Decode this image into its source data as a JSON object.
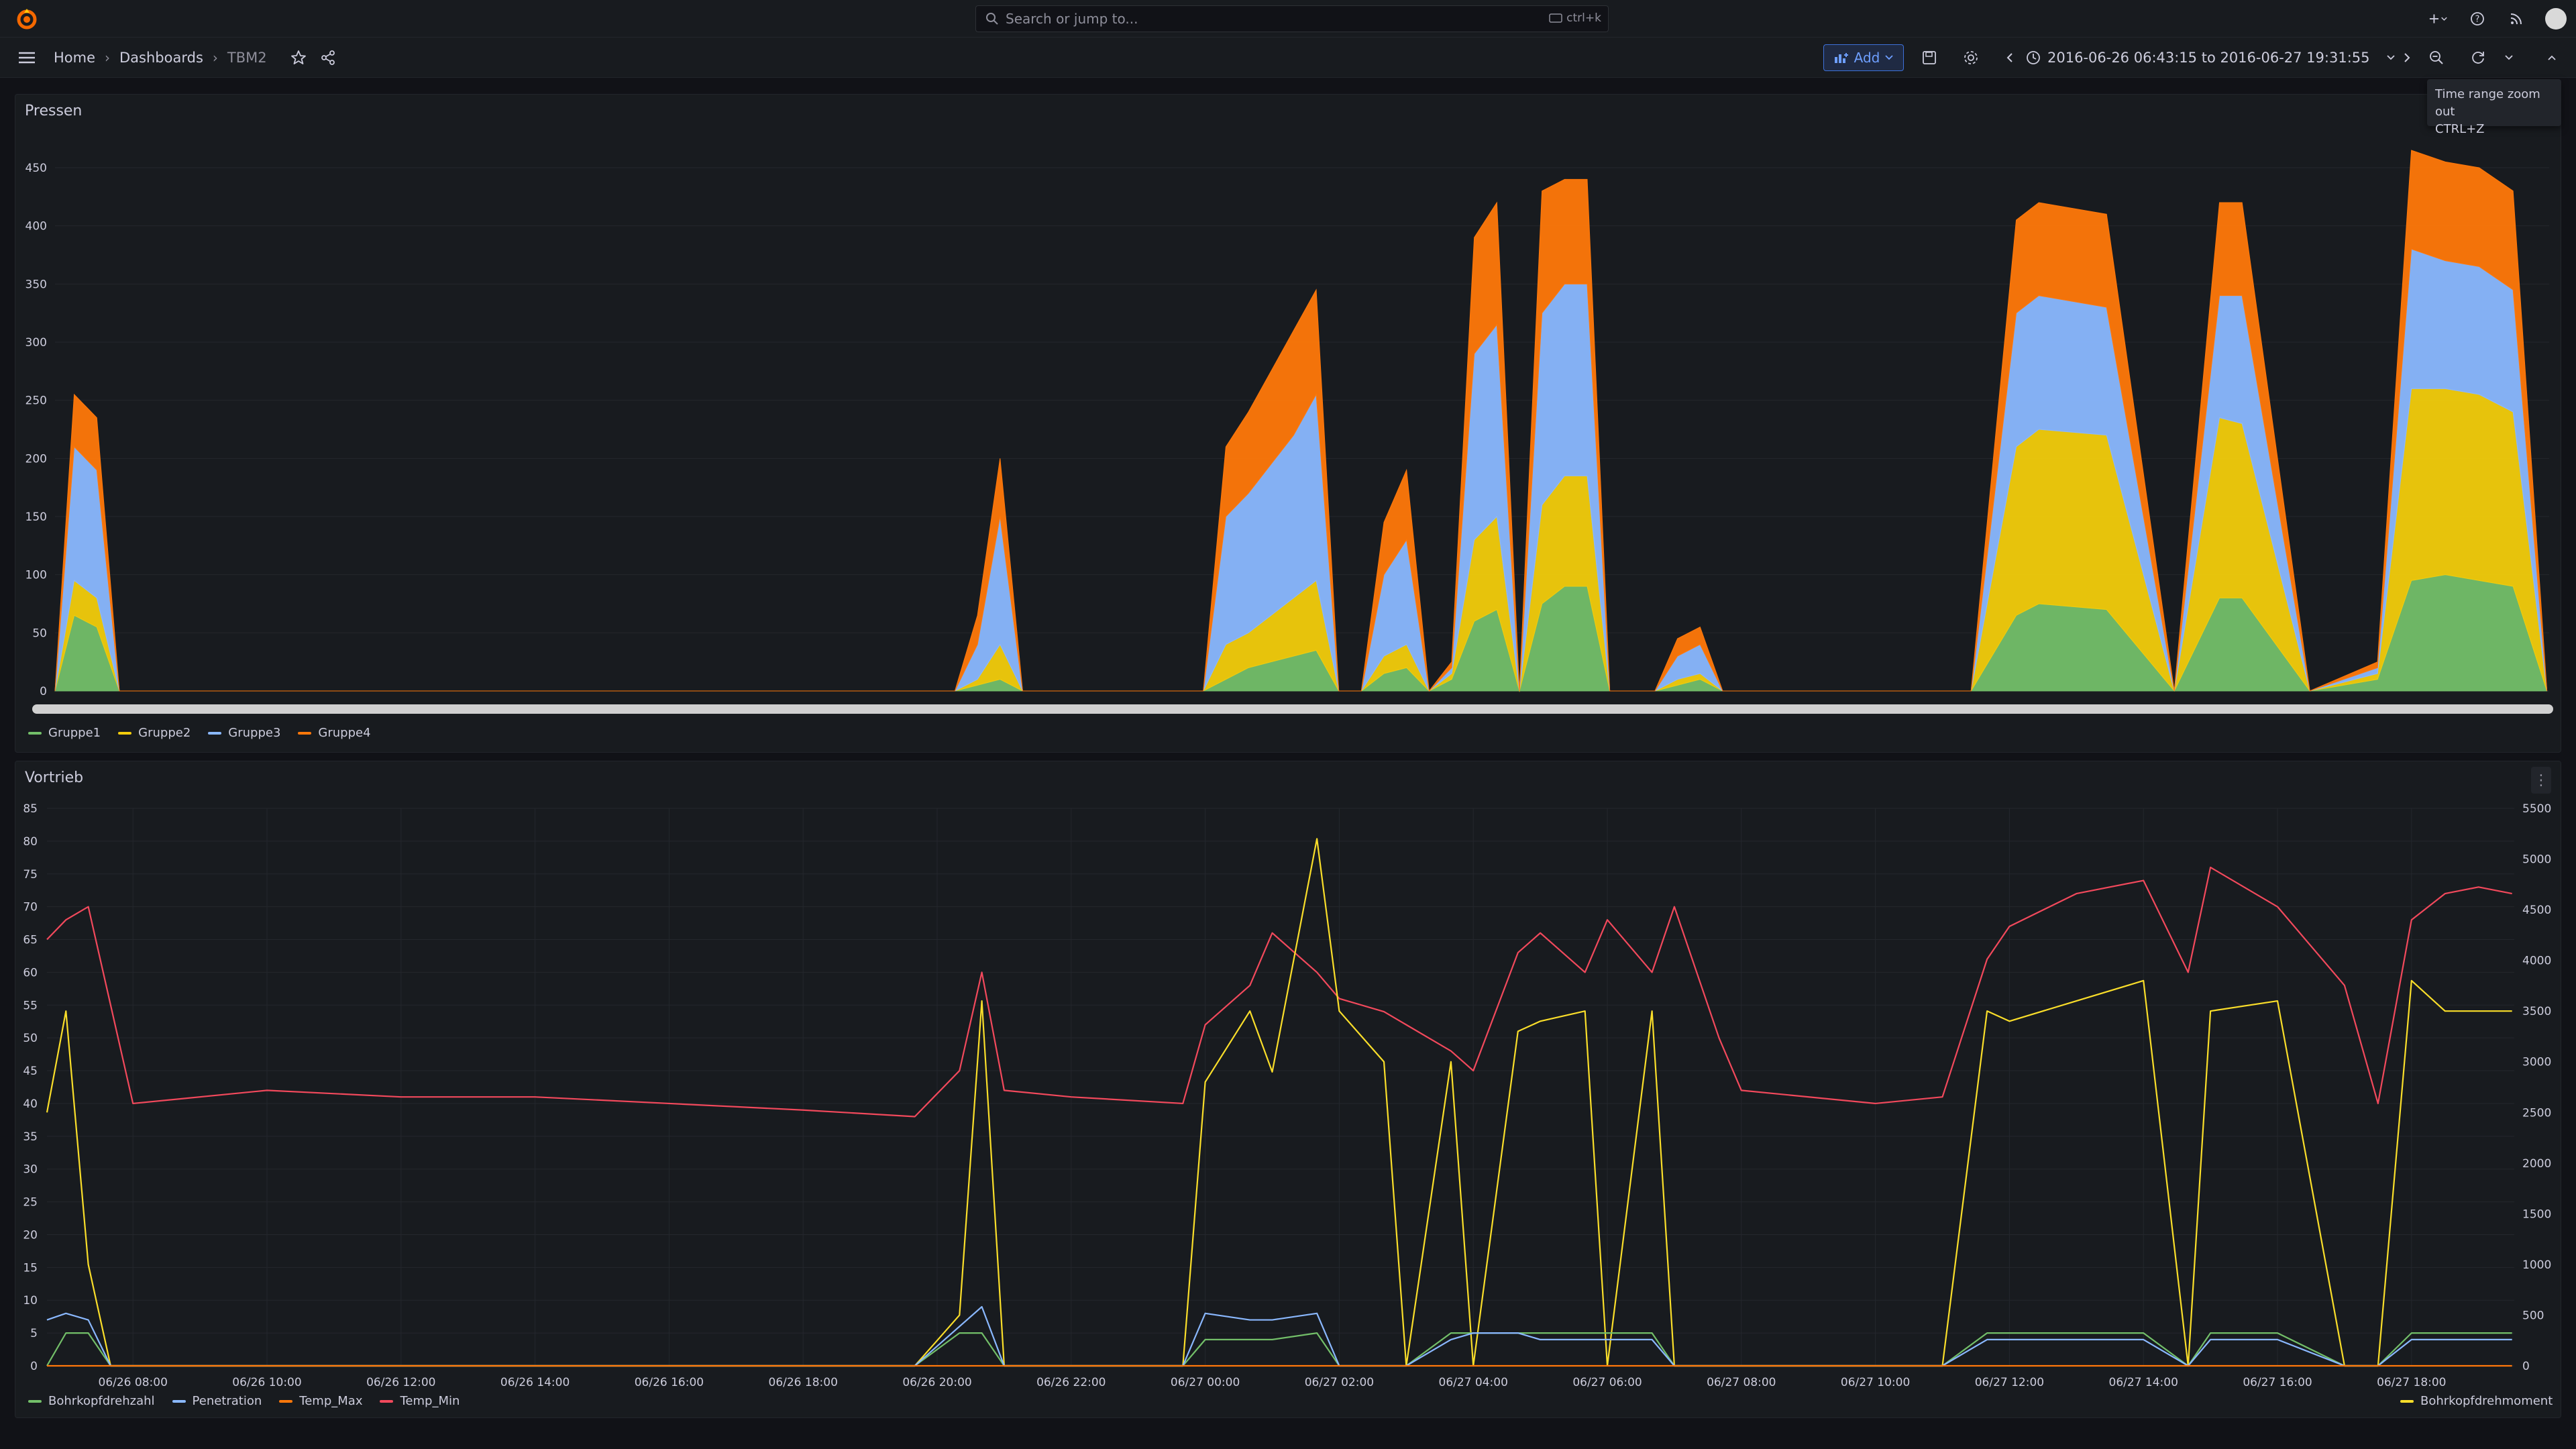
{
  "topbar": {
    "search_placeholder": "Search or jump to...",
    "search_shortcut": "ctrl+k"
  },
  "breadcrumb": [
    "Home",
    "Dashboards",
    "TBM2"
  ],
  "toolbar": {
    "add_label": "Add",
    "time_range": "2016-06-26 06:43:15 to 2016-06-27 19:31:55"
  },
  "tooltip": {
    "title": "Time range zoom out",
    "shortcut": "CTRL+Z"
  },
  "colors": {
    "green": "#73bf69",
    "yellow": "#f2cc0c",
    "blue": "#8ab8ff",
    "orange": "#ff780a",
    "red": "#f2495c",
    "gold": "#fade2a",
    "accent": "#3d71d9"
  },
  "chart_data": [
    {
      "type": "area",
      "title": "Pressen",
      "stacked": true,
      "x_range": [
        "2016-06-26 06:43:15",
        "2016-06-27 19:31:55"
      ],
      "ylim": [
        0,
        450
      ],
      "yticks": [
        0,
        50,
        100,
        150,
        200,
        250,
        300,
        350,
        400,
        450
      ],
      "legend_placement": "bottom-left",
      "x": [
        "06:43",
        "07:00",
        "07:20",
        "07:40",
        "08:00",
        "12:00",
        "18:00",
        "20:00",
        "20:20",
        "20:40",
        "21:00",
        "23:00",
        "23:40",
        "00:00",
        "00:20",
        "00:40",
        "01:00",
        "01:20",
        "01:40",
        "02:00",
        "02:20",
        "02:40",
        "03:00",
        "03:20",
        "03:40",
        "04:00",
        "04:20",
        "04:40",
        "05:00",
        "05:20",
        "05:40",
        "06:00",
        "06:20",
        "06:40",
        "07:00",
        "07:20",
        "07:40",
        "08:00",
        "11:00",
        "11:40",
        "12:00",
        "13:00",
        "14:00",
        "14:40",
        "15:00",
        "16:00",
        "17:00",
        "17:30",
        "18:00",
        "18:30",
        "19:00",
        "19:30"
      ],
      "series": [
        {
          "name": "Gruppe1",
          "values": [
            0,
            65,
            55,
            0,
            0,
            0,
            0,
            0,
            5,
            10,
            0,
            0,
            0,
            10,
            20,
            25,
            30,
            35,
            0,
            0,
            15,
            20,
            0,
            10,
            60,
            70,
            0,
            75,
            90,
            90,
            0,
            0,
            0,
            5,
            10,
            0,
            0,
            0,
            0,
            65,
            75,
            70,
            0,
            80,
            80,
            0,
            10,
            95,
            100,
            95,
            90,
            0
          ]
        },
        {
          "name": "Gruppe2",
          "values": [
            0,
            30,
            25,
            0,
            0,
            0,
            0,
            0,
            5,
            30,
            0,
            0,
            0,
            30,
            30,
            40,
            50,
            60,
            0,
            0,
            15,
            20,
            0,
            5,
            70,
            80,
            0,
            85,
            95,
            95,
            0,
            0,
            0,
            5,
            5,
            0,
            0,
            0,
            0,
            145,
            150,
            150,
            0,
            155,
            150,
            0,
            5,
            165,
            160,
            160,
            150,
            0
          ]
        },
        {
          "name": "Gruppe3",
          "values": [
            0,
            115,
            110,
            0,
            0,
            0,
            0,
            0,
            30,
            110,
            0,
            0,
            0,
            110,
            120,
            130,
            140,
            160,
            0,
            0,
            70,
            90,
            0,
            5,
            160,
            165,
            0,
            165,
            165,
            165,
            0,
            0,
            0,
            20,
            25,
            0,
            0,
            0,
            0,
            115,
            115,
            110,
            0,
            105,
            110,
            0,
            5,
            120,
            110,
            110,
            105,
            0
          ]
        },
        {
          "name": "Gruppe4",
          "values": [
            0,
            45,
            45,
            0,
            0,
            0,
            0,
            0,
            25,
            50,
            0,
            0,
            0,
            60,
            70,
            80,
            90,
            90,
            0,
            0,
            45,
            60,
            0,
            5,
            100,
            105,
            0,
            105,
            90,
            90,
            0,
            0,
            0,
            15,
            15,
            0,
            0,
            0,
            0,
            80,
            80,
            80,
            0,
            80,
            80,
            0,
            5,
            85,
            85,
            85,
            85,
            0
          ]
        }
      ]
    },
    {
      "type": "line",
      "title": "Vortrieb",
      "x_range": [
        "2016-06-26 06:43:15",
        "2016-06-27 19:31:55"
      ],
      "xticks": [
        "06/26 08:00",
        "06/26 10:00",
        "06/26 12:00",
        "06/26 14:00",
        "06/26 16:00",
        "06/26 18:00",
        "06/26 20:00",
        "06/26 22:00",
        "06/27 00:00",
        "06/27 02:00",
        "06/27 04:00",
        "06/27 06:00",
        "06/27 08:00",
        "06/27 10:00",
        "06/27 12:00",
        "06/27 14:00",
        "06/27 16:00",
        "06/27 18:00"
      ],
      "ylim_left": [
        0,
        85
      ],
      "yticks_left": [
        0,
        5,
        10,
        15,
        20,
        25,
        30,
        35,
        40,
        45,
        50,
        55,
        60,
        65,
        70,
        75,
        80,
        85
      ],
      "ylim_right": [
        0,
        5500
      ],
      "yticks_right": [
        0,
        500,
        1000,
        1500,
        2000,
        2500,
        3000,
        3500,
        4000,
        4500,
        5000,
        5500
      ],
      "legend_placement": "bottom",
      "legend_left": [
        "Bohrkopfdrehzahl",
        "Penetration",
        "Temp_Max",
        "Temp_Min"
      ],
      "legend_right": [
        "Bohrkopfdrehmoment"
      ],
      "x": [
        "06:43",
        "07:00",
        "07:20",
        "07:40",
        "08:00",
        "10:00",
        "12:00",
        "14:00",
        "16:00",
        "18:00",
        "19:40",
        "20:20",
        "20:40",
        "21:00",
        "22:00",
        "23:40",
        "00:00",
        "00:40",
        "01:00",
        "01:40",
        "02:00",
        "02:40",
        "03:00",
        "03:40",
        "04:00",
        "04:40",
        "05:00",
        "05:40",
        "06:00",
        "06:40",
        "07:00",
        "07:40",
        "08:00",
        "10:00",
        "11:00",
        "11:40",
        "12:00",
        "13:00",
        "14:00",
        "14:40",
        "15:00",
        "16:00",
        "17:00",
        "17:30",
        "18:00",
        "18:30",
        "19:00",
        "19:30"
      ],
      "series": [
        {
          "name": "Temp_Min",
          "axis": "left",
          "values": [
            65,
            68,
            70,
            55,
            40,
            42,
            41,
            41,
            40,
            39,
            38,
            45,
            60,
            42,
            41,
            40,
            52,
            58,
            66,
            60,
            56,
            54,
            52,
            48,
            45,
            63,
            66,
            60,
            68,
            60,
            70,
            50,
            42,
            40,
            41,
            62,
            67,
            72,
            74,
            60,
            76,
            70,
            58,
            40,
            68,
            72,
            73,
            72
          ]
        },
        {
          "name": "Bohrkopfdrehmoment",
          "axis": "right",
          "values": [
            2500,
            3500,
            1000,
            0,
            0,
            0,
            0,
            0,
            0,
            0,
            0,
            500,
            3600,
            0,
            0,
            0,
            2800,
            3500,
            2900,
            5200,
            3500,
            3000,
            0,
            3000,
            0,
            3300,
            3400,
            3500,
            0,
            3500,
            0,
            0,
            0,
            0,
            0,
            3500,
            3400,
            3600,
            3800,
            0,
            3500,
            3600,
            0,
            0,
            3800,
            3500,
            3500,
            3500
          ]
        },
        {
          "name": "Bohrkopfdrehzahl",
          "axis": "left",
          "values": [
            0,
            5,
            5,
            0,
            0,
            0,
            0,
            0,
            0,
            0,
            0,
            5,
            5,
            0,
            0,
            0,
            4,
            4,
            4,
            5,
            0,
            0,
            0,
            5,
            5,
            5,
            5,
            5,
            5,
            5,
            0,
            0,
            0,
            0,
            0,
            5,
            5,
            5,
            5,
            0,
            5,
            5,
            0,
            0,
            5,
            5,
            5,
            5
          ]
        },
        {
          "name": "Penetration",
          "axis": "left",
          "values": [
            7,
            8,
            7,
            0,
            0,
            0,
            0,
            0,
            0,
            0,
            0,
            6,
            9,
            0,
            0,
            0,
            8,
            7,
            7,
            8,
            0,
            0,
            0,
            4,
            5,
            5,
            4,
            4,
            4,
            4,
            0,
            0,
            0,
            0,
            0,
            4,
            4,
            4,
            4,
            0,
            4,
            4,
            0,
            0,
            4,
            4,
            4,
            4
          ]
        },
        {
          "name": "Temp_Max",
          "axis": "left",
          "values": [
            0,
            0,
            0,
            0,
            0,
            0,
            0,
            0,
            0,
            0,
            0,
            0,
            0,
            0,
            0,
            0,
            0,
            0,
            0,
            0,
            0,
            0,
            0,
            0,
            0,
            0,
            0,
            0,
            0,
            0,
            0,
            0,
            0,
            0,
            0,
            0,
            0,
            0,
            0,
            0,
            0,
            0,
            0,
            0,
            0,
            0,
            0,
            0
          ]
        }
      ]
    }
  ],
  "panel1_legend": [
    "Gruppe1",
    "Gruppe2",
    "Gruppe3",
    "Gruppe4"
  ],
  "panel1_title": "Pressen",
  "panel2_title": "Vortrieb"
}
